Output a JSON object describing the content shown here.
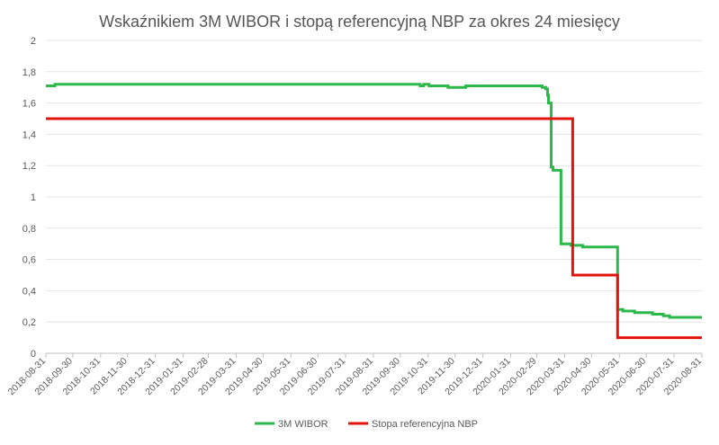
{
  "chart_data": {
    "type": "line",
    "title": "Wskaźnikiem 3M WIBOR i stopą referencyjną NBP za okres 24 miesięcy",
    "xlabel": "",
    "ylabel": "",
    "ylim": [
      0,
      2
    ],
    "y_ticks": [
      "0",
      "0,2",
      "0,4",
      "0,6",
      "0,8",
      "1",
      "1,2",
      "1,4",
      "1,6",
      "1,8",
      "2"
    ],
    "x_ticks": [
      "2018-08-31",
      "2018-09-30",
      "2018-10-31",
      "2018-11-30",
      "2018-12-31",
      "2019-01-31",
      "2019-02-28",
      "2019-03-31",
      "2019-04-30",
      "2019-05-31",
      "2019-06-30",
      "2019-07-31",
      "2019-08-31",
      "2019-09-30",
      "2019-10-31",
      "2019-11-30",
      "2019-12-31",
      "2020-01-31",
      "2020-02-29",
      "2020-03-31",
      "2020-04-30",
      "2020-05-31",
      "2020-06-30",
      "2020-07-31",
      "2020-08-31"
    ],
    "grid": true,
    "legend_position": "bottom",
    "series": [
      {
        "name": "3M WIBOR",
        "color": "#2db84c",
        "step": true,
        "x": [
          "2018-08-31",
          "2018-09-10",
          "2019-10-22",
          "2019-10-26",
          "2019-11-01",
          "2019-11-22",
          "2019-12-12",
          "2020-02-29",
          "2020-03-06",
          "2020-03-10",
          "2020-03-12",
          "2020-03-13",
          "2020-03-16",
          "2020-03-18",
          "2020-03-27",
          "2020-04-07",
          "2020-04-13",
          "2020-04-20",
          "2020-05-29",
          "2020-06-04",
          "2020-06-17",
          "2020-07-07",
          "2020-07-19",
          "2020-07-26",
          "2020-08-31"
        ],
        "values": [
          1.71,
          1.72,
          1.71,
          1.72,
          1.71,
          1.7,
          1.71,
          1.71,
          1.7,
          1.69,
          1.65,
          1.6,
          1.19,
          1.17,
          0.7,
          0.69,
          0.69,
          0.68,
          0.28,
          0.27,
          0.26,
          0.25,
          0.24,
          0.23,
          0.23
        ]
      },
      {
        "name": "Stopa referencyjna NBP",
        "color": "#e3140c",
        "step": true,
        "x": [
          "2018-08-31",
          "2020-03-18",
          "2020-04-09",
          "2020-05-29",
          "2020-08-31"
        ],
        "values": [
          1.5,
          1.5,
          0.5,
          0.1,
          0.1
        ]
      }
    ]
  }
}
